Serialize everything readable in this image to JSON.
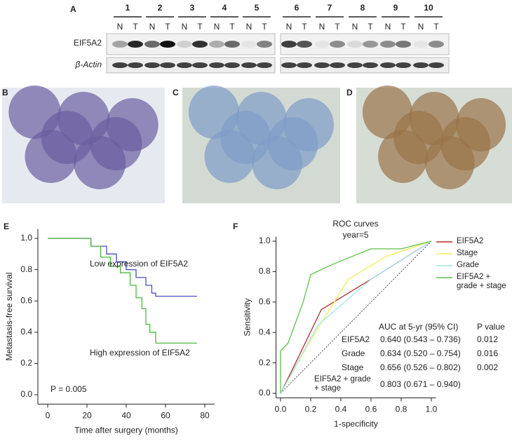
{
  "panel_a": {
    "label": "A",
    "lanes": [
      "1",
      "2",
      "3",
      "4",
      "5",
      "6",
      "7",
      "8",
      "9",
      "10"
    ],
    "lane_labels": [
      "N",
      "T"
    ],
    "rows": [
      "EIF5A2",
      "β-Actin"
    ]
  },
  "images": [
    {
      "label": "B"
    },
    {
      "label": "C"
    },
    {
      "label": "D"
    }
  ],
  "chart_data": [
    {
      "type": "line",
      "panel_label": "E",
      "step": true,
      "xlabel": "Time after surgery (months)",
      "ylabel": "Metastasis-free survival",
      "xlim": [
        -5,
        85
      ],
      "ylim": [
        -0.06,
        1.06
      ],
      "xticks": [
        0,
        20,
        40,
        60,
        80
      ],
      "yticks": [
        {
          "value": 0,
          "label": "0.0"
        },
        0.2,
        0.4,
        0.6,
        0.8,
        {
          "value": 1,
          "label": "1.0"
        }
      ],
      "annotations": [
        "Low expression of EIF5A2",
        "High expression of EIF5A2",
        "P = 0.005"
      ],
      "series": [
        {
          "color": "#4a4fc0",
          "x": [
            0,
            15,
            22,
            30,
            35,
            40,
            45,
            50,
            53,
            55,
            76
          ],
          "values": [
            1.0,
            1.0,
            0.95,
            0.9,
            0.85,
            0.8,
            0.75,
            0.7,
            0.65,
            0.63,
            0.63
          ]
        },
        {
          "color": "#4cb83e",
          "x": [
            0,
            15,
            22,
            27,
            32,
            37,
            42,
            45,
            48,
            50,
            52,
            55,
            76
          ],
          "values": [
            1.0,
            1.0,
            0.95,
            0.88,
            0.82,
            0.78,
            0.7,
            0.62,
            0.55,
            0.45,
            0.4,
            0.33,
            0.33
          ]
        }
      ]
    },
    {
      "type": "line",
      "panel_label": "F",
      "title": "ROC curves",
      "subtitle": "year=5",
      "xlabel": "1-specificity",
      "ylabel": "Sensitivity",
      "xlim": [
        -0.03,
        1.03
      ],
      "ylim": [
        -0.03,
        1.03
      ],
      "xticks": [
        {
          "value": 0,
          "label": "0.0"
        },
        0.2,
        0.4,
        0.6,
        0.8,
        {
          "value": 1,
          "label": "1.0"
        }
      ],
      "yticks": [
        {
          "value": 0,
          "label": "0.0"
        },
        0.2,
        0.4,
        0.6,
        0.8,
        {
          "value": 1,
          "label": "1.0"
        }
      ],
      "series": [
        {
          "name": "EIF5A2",
          "color": "#b22a2a",
          "x": [
            0,
            0.1,
            0.27,
            0.6,
            1
          ],
          "values": [
            0,
            0.2,
            0.55,
            0.75,
            1
          ]
        },
        {
          "name": "Stage",
          "color": "#f3ee5a",
          "x": [
            0,
            0.2,
            0.45,
            0.7,
            1
          ],
          "values": [
            0,
            0.35,
            0.75,
            0.9,
            1
          ]
        },
        {
          "name": "Grade",
          "color": "#9fe3ee",
          "x": [
            0,
            0.25,
            0.6,
            1
          ],
          "values": [
            0,
            0.45,
            0.75,
            1
          ]
        },
        {
          "name": "EIF5A2 + grade + stage",
          "color": "#5fc24a",
          "x": [
            0,
            0,
            0.05,
            0.15,
            0.2,
            0.35,
            0.6,
            0.8,
            1
          ],
          "values": [
            0,
            0.28,
            0.33,
            0.6,
            0.78,
            0.85,
            0.95,
            0.95,
            1
          ]
        }
      ],
      "table": {
        "header": [
          "AUC at 5-yr (95% CI)",
          "P value"
        ],
        "rows": [
          [
            "EIF5A2",
            "0.640 (0.543 – 0.736)",
            "0.012"
          ],
          [
            "Grade",
            "0.634 (0.520 – 0.754)",
            "0.016"
          ],
          [
            "Stage",
            "0.656 (0.526 – 0.802)",
            "0.002"
          ],
          [
            "EIF5A2 + grade + stage",
            "0.803 (0.671 – 0.940)"
          ]
        ]
      }
    }
  ]
}
